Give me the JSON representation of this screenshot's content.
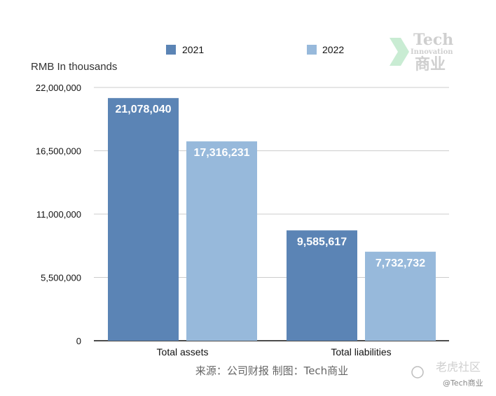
{
  "chart_data": {
    "type": "bar",
    "unit_label": "RMB In thousands",
    "categories": [
      "Total assets",
      "Total liabilities"
    ],
    "series": [
      {
        "name": "2021",
        "values": [
          21078040,
          9585617
        ],
        "color": "#5b84b5"
      },
      {
        "name": "2022",
        "values": [
          17316231,
          7732732
        ],
        "color": "#97b9db"
      }
    ],
    "data_labels": [
      [
        "21,078,040",
        "9,585,617"
      ],
      [
        "17,316,231",
        "7,732,732"
      ]
    ],
    "yticks": [
      "0",
      "5,500,000",
      "11,000,000",
      "16,500,000",
      "22,000,000"
    ],
    "ylim": [
      0,
      22000000
    ],
    "grid": true,
    "legend_position": "top"
  },
  "source_text": "来源：公司财报 制图：Tech商业",
  "logo": {
    "line1": "Tech",
    "line2": "Innovation",
    "line3": "商业"
  },
  "watermark": {
    "line1": "老虎社区",
    "line2": "@Tech商业"
  }
}
